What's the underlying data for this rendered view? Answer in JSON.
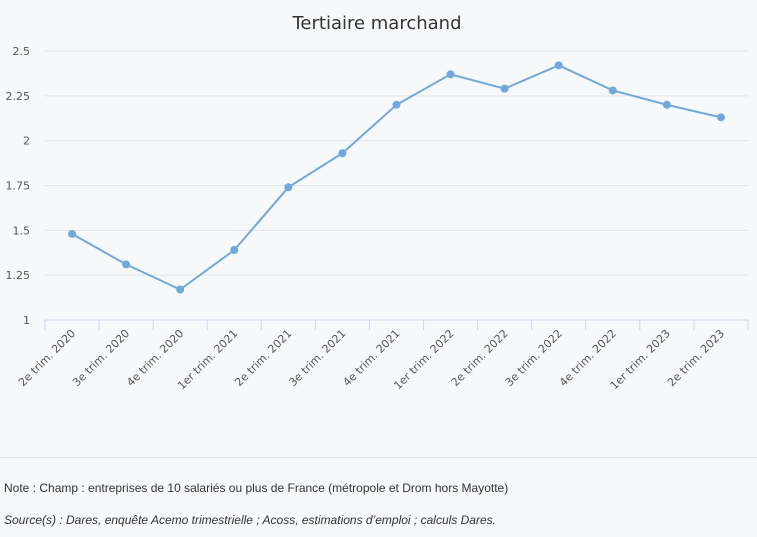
{
  "chart_data": {
    "type": "line",
    "title": "Tertiaire marchand",
    "xlabel": "",
    "ylabel": "",
    "ylim": [
      1,
      2.5
    ],
    "yticks": [
      "1",
      "1.25",
      "1.5",
      "1.75",
      "2",
      "2.25",
      "2.5"
    ],
    "grid": true,
    "legend": "none",
    "categories": [
      "2e trim. 2020",
      "3e trim. 2020",
      "4e trim. 2020",
      "1er trim. 2021",
      "2e trim. 2021",
      "3e trim. 2021",
      "4e trim. 2021",
      "1er trim. 2022",
      "2e trim. 2022",
      "3e trim. 2022",
      "4e trim. 2022",
      "1er trim. 2023",
      "2e trim. 2023"
    ],
    "series": [
      {
        "name": "Tertiaire marchand",
        "color": "#6fa8dc",
        "values": [
          1.48,
          1.31,
          1.17,
          1.39,
          1.74,
          1.93,
          2.2,
          2.37,
          2.29,
          2.42,
          2.28,
          2.2,
          2.13
        ]
      }
    ]
  },
  "footer": {
    "note": "Note : Champ : entreprises de 10 salariés ou plus de France (métropole et Drom hors Mayotte)",
    "source": "Source(s) : Dares, enquête Acemo trimestrielle ; Acoss, estimations d’emploi ; calculs Dares."
  }
}
